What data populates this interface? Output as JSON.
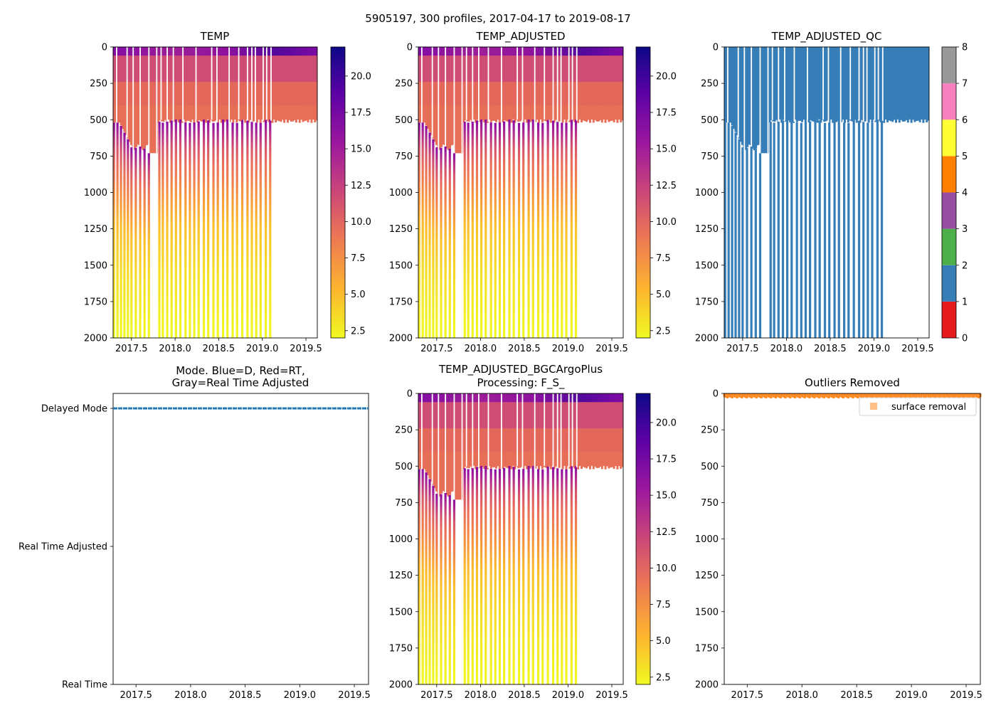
{
  "figure_title": "5905197, 300 profiles, 2017-04-17 to 2019-08-17",
  "colors": {
    "plasma": [
      "#0d0887",
      "#5c01a6",
      "#9c179e",
      "#cc4778",
      "#ed7953",
      "#fdb42f",
      "#f0f921"
    ],
    "qc": [
      "#e41a1c",
      "#377eb8",
      "#4daf4a",
      "#984ea3",
      "#ff7f00",
      "#ffff33",
      "#a65628",
      "#f781bf",
      "#999999"
    ],
    "mode_line": "#1f77b4",
    "outlier": "#ff7f0e"
  },
  "chart_data": [
    {
      "id": "temp",
      "type": "heatmap",
      "title": "TEMP",
      "xlim": [
        2017.29,
        2019.63
      ],
      "ylim": [
        2000,
        0
      ],
      "xticks": [
        "2017.5",
        "2018.0",
        "2018.5",
        "2019.0",
        "2019.5"
      ],
      "yticks": [
        "0",
        "250",
        "500",
        "750",
        "1000",
        "1250",
        "1500",
        "1750",
        "2000"
      ],
      "colorbar": {
        "range": [
          2,
          22
        ],
        "ticks": [
          "2.5",
          "5.0",
          "7.5",
          "10.0",
          "12.5",
          "15.0",
          "17.5",
          "20.0"
        ]
      },
      "deep_profile_dates": [
        2017.3,
        2017.34,
        2017.38,
        2017.42,
        2017.46,
        2017.5,
        2017.55,
        2017.6,
        2017.65,
        2017.7,
        2017.82,
        2017.86,
        2017.91,
        2017.96,
        2018.01,
        2018.06,
        2018.12,
        2018.17,
        2018.22,
        2018.27,
        2018.33,
        2018.38,
        2018.44,
        2018.49,
        2018.55,
        2018.6,
        2018.66,
        2018.71,
        2018.77,
        2018.83,
        2018.88,
        2018.93,
        2018.98,
        2019.04,
        2019.09
      ],
      "gap_dates": [
        2017.33,
        2017.45,
        2017.52,
        2017.6,
        2017.7,
        2017.79,
        2017.84,
        2017.91,
        2017.98,
        2018.09,
        2018.24,
        2018.42,
        2018.48,
        2018.62,
        2018.73,
        2018.83,
        2018.88,
        2018.92,
        2019.01,
        2019.05,
        2019.1
      ]
    },
    {
      "id": "temp_adjusted",
      "type": "heatmap",
      "title": "TEMP_ADJUSTED",
      "xlim": [
        2017.29,
        2019.63
      ],
      "ylim": [
        2000,
        0
      ],
      "xticks": [
        "2017.5",
        "2018.0",
        "2018.5",
        "2019.0",
        "2019.5"
      ],
      "yticks": [
        "0",
        "250",
        "500",
        "750",
        "1000",
        "1250",
        "1500",
        "1750",
        "2000"
      ],
      "colorbar": {
        "range": [
          2,
          22
        ],
        "ticks": [
          "2.5",
          "5.0",
          "7.5",
          "10.0",
          "12.5",
          "15.0",
          "17.5",
          "20.0"
        ]
      },
      "deep_profile_dates": [
        2017.3,
        2017.34,
        2017.38,
        2017.42,
        2017.46,
        2017.5,
        2017.55,
        2017.6,
        2017.65,
        2017.7,
        2017.82,
        2017.86,
        2017.91,
        2017.96,
        2018.01,
        2018.06,
        2018.12,
        2018.17,
        2018.22,
        2018.27,
        2018.33,
        2018.38,
        2018.44,
        2018.49,
        2018.55,
        2018.6,
        2018.66,
        2018.71,
        2018.77,
        2018.83,
        2018.88,
        2018.93,
        2018.98,
        2019.04,
        2019.09
      ],
      "gap_dates": [
        2017.33,
        2017.45,
        2017.52,
        2017.6,
        2017.7,
        2017.79,
        2017.84,
        2017.91,
        2017.98,
        2018.09,
        2018.24,
        2018.42,
        2018.48,
        2018.62,
        2018.73,
        2018.83,
        2018.88,
        2018.92,
        2019.01,
        2019.05,
        2019.1
      ]
    },
    {
      "id": "temp_adjusted_qc",
      "type": "heatmap",
      "title": "TEMP_ADJUSTED_QC",
      "xlim": [
        2017.29,
        2019.63
      ],
      "ylim": [
        2000,
        0
      ],
      "xticks": [
        "2017.5",
        "2018.0",
        "2018.5",
        "2019.0",
        "2019.5"
      ],
      "yticks": [
        "0",
        "250",
        "500",
        "750",
        "1000",
        "1250",
        "1500",
        "1750",
        "2000"
      ],
      "colorbar": {
        "range": [
          0,
          8
        ],
        "ticks": [
          "0",
          "1",
          "2",
          "3",
          "4",
          "5",
          "6",
          "7",
          "8"
        ]
      },
      "qc_value": 1,
      "deep_profile_dates": [
        2017.3,
        2017.34,
        2017.38,
        2017.42,
        2017.46,
        2017.5,
        2017.55,
        2017.6,
        2017.65,
        2017.7,
        2017.82,
        2017.86,
        2017.91,
        2017.96,
        2018.01,
        2018.06,
        2018.12,
        2018.17,
        2018.22,
        2018.27,
        2018.33,
        2018.38,
        2018.44,
        2018.49,
        2018.55,
        2018.6,
        2018.66,
        2018.71,
        2018.77,
        2018.83,
        2018.88,
        2018.93,
        2018.98,
        2019.04,
        2019.09
      ],
      "gap_dates": [
        2017.33,
        2017.45,
        2017.52,
        2017.6,
        2017.7,
        2017.79,
        2017.84,
        2017.91,
        2017.98,
        2018.09,
        2018.24,
        2018.42,
        2018.48,
        2018.62,
        2018.73,
        2018.83,
        2018.88,
        2018.92,
        2019.01,
        2019.05,
        2019.1
      ]
    },
    {
      "id": "mode",
      "type": "line",
      "title": "Mode. Blue=D, Red=RT,",
      "title_line2": "Gray=Real Time Adjusted",
      "xlim": [
        2017.29,
        2019.63
      ],
      "xticks": [
        "2017.5",
        "2018.0",
        "2018.5",
        "2019.0",
        "2019.5"
      ],
      "ycategories": [
        "Delayed Mode",
        "Real Time Adjusted",
        "Real Time"
      ],
      "series": [
        {
          "name": "Delayed Mode",
          "x": [
            2017.29,
            2019.63
          ],
          "level": "Delayed Mode"
        }
      ]
    },
    {
      "id": "bgcargoplus",
      "type": "heatmap",
      "title": "TEMP_ADJUSTED_BGCArgoPlus",
      "title_line2": "Processing: F_S_",
      "xlim": [
        2017.29,
        2019.63
      ],
      "ylim": [
        2000,
        0
      ],
      "xticks": [
        "2017.5",
        "2018.0",
        "2018.5",
        "2019.0",
        "2019.5"
      ],
      "yticks": [
        "0",
        "250",
        "500",
        "750",
        "1000",
        "1250",
        "1500",
        "1750",
        "2000"
      ],
      "colorbar": {
        "range": [
          2,
          22
        ],
        "ticks": [
          "2.5",
          "5.0",
          "7.5",
          "10.0",
          "12.5",
          "15.0",
          "17.5",
          "20.0"
        ]
      },
      "deep_profile_dates": [
        2017.3,
        2017.34,
        2017.38,
        2017.42,
        2017.46,
        2017.5,
        2017.55,
        2017.6,
        2017.65,
        2017.7,
        2017.82,
        2017.86,
        2017.91,
        2017.96,
        2018.01,
        2018.06,
        2018.12,
        2018.17,
        2018.22,
        2018.27,
        2018.33,
        2018.38,
        2018.44,
        2018.49,
        2018.55,
        2018.6,
        2018.66,
        2018.71,
        2018.77,
        2018.83,
        2018.88,
        2018.93,
        2018.98,
        2019.04,
        2019.09
      ],
      "gap_dates": [
        2017.33,
        2017.45,
        2017.52,
        2017.6,
        2017.7,
        2017.79,
        2017.84,
        2017.91,
        2017.98,
        2018.09,
        2018.24,
        2018.42,
        2018.48,
        2018.62,
        2018.73,
        2018.83,
        2018.88,
        2018.92,
        2019.01,
        2019.05,
        2019.1
      ]
    },
    {
      "id": "outliers",
      "type": "scatter",
      "title": "Outliers Removed",
      "xlim": [
        2017.29,
        2019.63
      ],
      "ylim": [
        2000,
        0
      ],
      "xticks": [
        "2017.5",
        "2018.0",
        "2018.5",
        "2019.0",
        "2019.5"
      ],
      "yticks": [
        "0",
        "250",
        "500",
        "750",
        "1000",
        "1250",
        "1500",
        "1750",
        "2000"
      ],
      "legend": {
        "label": "surface removal",
        "placement": "top-right"
      },
      "series": [
        {
          "name": "surface removal",
          "depth_range": [
            0,
            25
          ]
        }
      ]
    }
  ]
}
